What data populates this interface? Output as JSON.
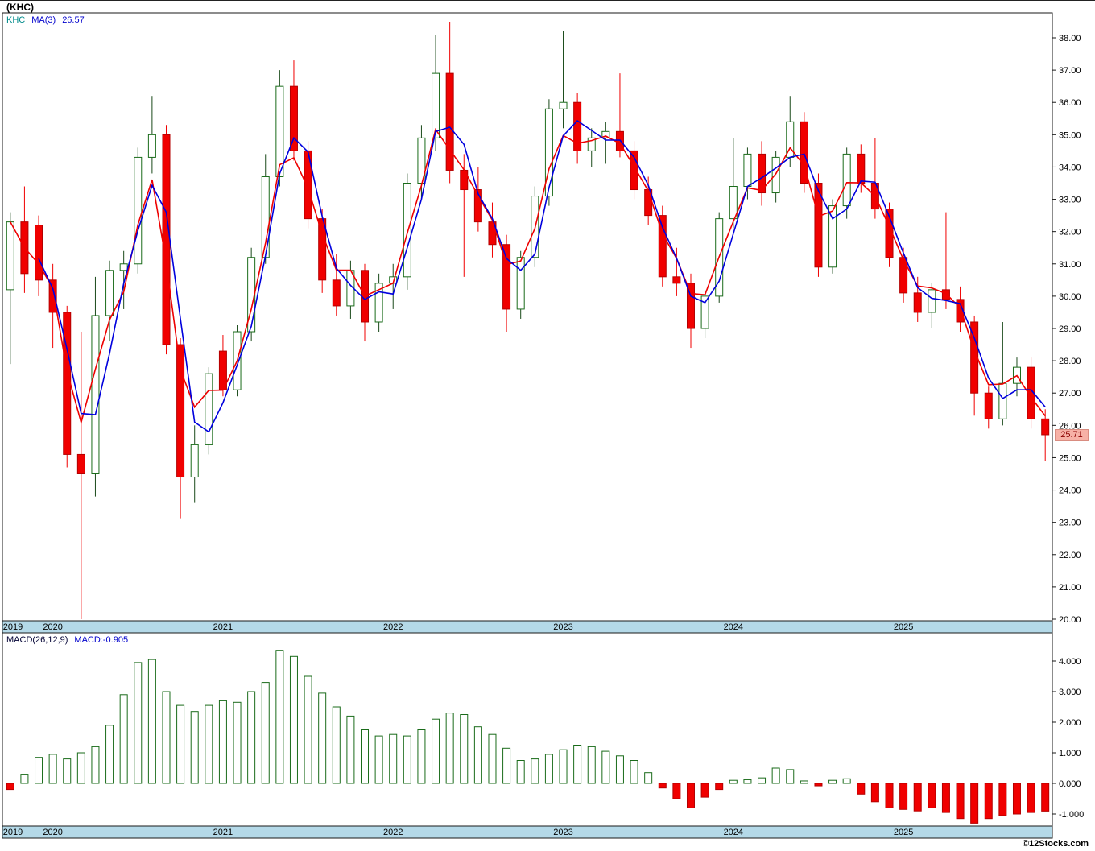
{
  "header": {
    "title": "(KHC)"
  },
  "footer": {
    "credit": "©12Stocks.com"
  },
  "main_legend": {
    "symbol": "KHC",
    "ma_label": "MA(3)",
    "ma_value": "26.57"
  },
  "macd_legend": {
    "label": "MACD(26,12,9)",
    "value_label": "MACD:-0.905"
  },
  "price_marker": {
    "value": "25.71"
  },
  "colors": {
    "up": "#1a6b1a",
    "up_fill": "#ffffff",
    "up_wick": "#1a4a1a",
    "down": "#f00000",
    "down_stroke": "#b40000",
    "ma_blue": "#0000dd",
    "ma_red": "#ee0000",
    "axis_band": "#b4d9e8",
    "frame": "#1a1a1a",
    "marker_bg": "#f7b1a6",
    "marker_text": "#8b0000",
    "legend_symbol": "#008b8b",
    "legend_blue": "#0000cc"
  },
  "chart_data": [
    {
      "type": "candlestick",
      "title": "(KHC)",
      "interval": "monthly",
      "start_month": "2019-10",
      "ma_blue_period": 3,
      "ma_blue_last": 26.57,
      "last_price": 25.71,
      "ylim": [
        20,
        38.7
      ],
      "y_ticks": [
        38,
        37,
        36,
        35,
        34,
        33,
        32,
        31,
        30,
        29,
        28,
        27,
        26,
        25,
        24,
        23,
        22,
        21,
        20
      ],
      "x_year_ticks": [
        {
          "label": "2019",
          "index": 0
        },
        {
          "label": "2020",
          "index": 3
        },
        {
          "label": "2021",
          "index": 15
        },
        {
          "label": "2022",
          "index": 27
        },
        {
          "label": "2023",
          "index": 39
        },
        {
          "label": "2024",
          "index": 51
        },
        {
          "label": "2025",
          "index": 63
        }
      ],
      "ohlc": [
        [
          30.2,
          32.6,
          27.9,
          32.3
        ],
        [
          32.3,
          33.4,
          30.1,
          30.7
        ],
        [
          32.2,
          32.5,
          30.0,
          30.5
        ],
        [
          30.5,
          31.0,
          28.4,
          29.5
        ],
        [
          29.5,
          29.7,
          24.7,
          25.1
        ],
        [
          25.1,
          28.9,
          20.0,
          24.5
        ],
        [
          24.5,
          30.6,
          23.8,
          29.4
        ],
        [
          29.4,
          31.1,
          28.6,
          30.8
        ],
        [
          30.8,
          31.4,
          29.6,
          31.0
        ],
        [
          31.0,
          34.6,
          30.7,
          34.3
        ],
        [
          34.3,
          36.2,
          33.8,
          35.0
        ],
        [
          35.0,
          35.3,
          28.2,
          28.5
        ],
        [
          28.5,
          28.7,
          23.1,
          24.4
        ],
        [
          24.4,
          26.0,
          23.6,
          25.4
        ],
        [
          25.4,
          27.8,
          25.1,
          27.6
        ],
        [
          28.3,
          28.8,
          26.9,
          27.1
        ],
        [
          27.1,
          29.1,
          26.9,
          28.9
        ],
        [
          28.9,
          31.5,
          28.6,
          31.2
        ],
        [
          31.2,
          34.4,
          31.0,
          33.7
        ],
        [
          33.7,
          37.0,
          33.4,
          36.5
        ],
        [
          36.5,
          37.3,
          34.2,
          34.5
        ],
        [
          34.5,
          34.8,
          32.1,
          32.4
        ],
        [
          32.4,
          32.7,
          30.1,
          30.5
        ],
        [
          30.5,
          31.3,
          29.4,
          29.7
        ],
        [
          29.7,
          31.1,
          29.3,
          30.8
        ],
        [
          30.8,
          31.0,
          28.6,
          29.2
        ],
        [
          29.2,
          30.7,
          28.9,
          30.4
        ],
        [
          30.4,
          31.0,
          29.6,
          30.6
        ],
        [
          30.6,
          33.8,
          30.2,
          33.5
        ],
        [
          33.5,
          35.3,
          33.0,
          34.9
        ],
        [
          34.9,
          38.1,
          34.5,
          36.9
        ],
        [
          36.9,
          38.5,
          33.5,
          33.9
        ],
        [
          33.9,
          34.4,
          30.6,
          33.3
        ],
        [
          33.3,
          34.0,
          32.0,
          32.3
        ],
        [
          32.3,
          32.9,
          31.2,
          31.6
        ],
        [
          31.6,
          31.9,
          28.9,
          29.6
        ],
        [
          29.6,
          31.4,
          29.3,
          31.2
        ],
        [
          31.2,
          33.4,
          30.9,
          33.1
        ],
        [
          33.1,
          36.1,
          32.8,
          35.8
        ],
        [
          35.8,
          38.2,
          35.2,
          36.0
        ],
        [
          36.0,
          36.3,
          34.1,
          34.5
        ],
        [
          34.5,
          35.2,
          34.0,
          34.9
        ],
        [
          34.9,
          35.4,
          34.1,
          35.1
        ],
        [
          35.1,
          36.9,
          34.3,
          34.5
        ],
        [
          34.5,
          34.8,
          33.0,
          33.3
        ],
        [
          33.3,
          33.7,
          32.2,
          32.5
        ],
        [
          32.5,
          32.8,
          30.3,
          30.6
        ],
        [
          30.6,
          31.5,
          30.0,
          30.4
        ],
        [
          30.4,
          30.7,
          28.4,
          29.0
        ],
        [
          29.0,
          30.2,
          28.7,
          30.0
        ],
        [
          30.0,
          32.6,
          29.8,
          32.4
        ],
        [
          32.4,
          34.9,
          32.1,
          33.4
        ],
        [
          33.4,
          34.6,
          33.0,
          34.4
        ],
        [
          34.4,
          34.8,
          32.8,
          33.2
        ],
        [
          33.2,
          34.5,
          32.9,
          34.3
        ],
        [
          34.3,
          36.2,
          34.0,
          35.4
        ],
        [
          35.4,
          35.7,
          33.2,
          33.5
        ],
        [
          33.5,
          33.8,
          30.6,
          30.9
        ],
        [
          30.9,
          33.0,
          30.7,
          32.8
        ],
        [
          32.8,
          34.6,
          32.4,
          34.4
        ],
        [
          34.4,
          34.7,
          33.2,
          33.5
        ],
        [
          33.5,
          34.9,
          32.4,
          32.7
        ],
        [
          32.7,
          32.9,
          30.9,
          31.2
        ],
        [
          31.2,
          31.5,
          29.8,
          30.1
        ],
        [
          30.1,
          30.6,
          29.2,
          29.5
        ],
        [
          29.5,
          30.4,
          29.0,
          30.2
        ],
        [
          30.2,
          32.6,
          29.6,
          29.9
        ],
        [
          29.9,
          30.3,
          28.9,
          29.2
        ],
        [
          29.2,
          29.4,
          26.3,
          27.0
        ],
        [
          27.0,
          27.2,
          25.9,
          26.2
        ],
        [
          26.2,
          29.2,
          26.0,
          27.3
        ],
        [
          27.3,
          28.1,
          26.9,
          27.8
        ],
        [
          27.8,
          28.1,
          25.9,
          26.2
        ],
        [
          26.2,
          26.5,
          24.9,
          25.71
        ]
      ]
    },
    {
      "type": "bar",
      "title": "MACD(26,12,9)",
      "last_value": -0.905,
      "ylim": [
        -1.4,
        4.9
      ],
      "y_ticks": [
        4,
        3,
        2,
        1,
        0,
        -1
      ],
      "values": [
        -0.2,
        0.3,
        0.85,
        0.95,
        0.8,
        1.0,
        1.2,
        1.9,
        2.9,
        3.95,
        4.05,
        3.0,
        2.55,
        2.35,
        2.55,
        2.7,
        2.65,
        3.0,
        3.3,
        4.35,
        4.15,
        3.5,
        2.95,
        2.5,
        2.2,
        1.75,
        1.55,
        1.6,
        1.55,
        1.75,
        2.1,
        2.3,
        2.25,
        1.85,
        1.6,
        1.15,
        0.75,
        0.8,
        0.95,
        1.1,
        1.25,
        1.2,
        1.05,
        0.9,
        0.75,
        0.35,
        -0.15,
        -0.5,
        -0.8,
        -0.45,
        -0.2,
        0.1,
        0.12,
        0.18,
        0.5,
        0.45,
        0.08,
        -0.08,
        0.1,
        0.15,
        -0.35,
        -0.6,
        -0.8,
        -0.85,
        -0.9,
        -0.8,
        -0.95,
        -1.15,
        -1.3,
        -1.15,
        -1.05,
        -1.0,
        -0.95,
        -0.905
      ]
    }
  ]
}
